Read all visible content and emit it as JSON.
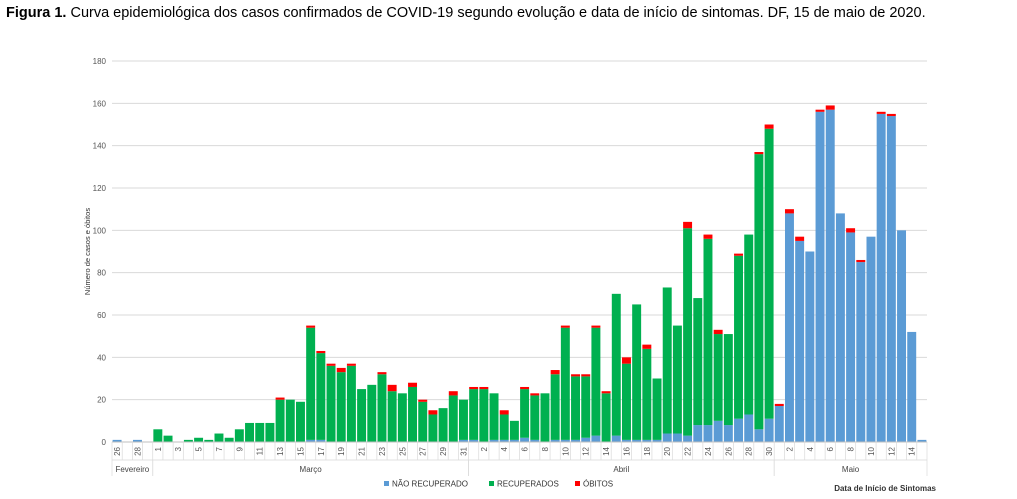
{
  "caption": {
    "label": "Figura 1.",
    "text": " Curva epidemiológica dos casos confirmados de COVID-19 segundo evolução e data de início de sintomas. DF, 15 de maio de 2020."
  },
  "chart_data": {
    "type": "bar",
    "stacked": true,
    "ylabel": "Número de casos e óbitos",
    "xlabel": "Data de Início de Sintomas",
    "ylim": [
      0,
      180
    ],
    "yticks": [
      0,
      20,
      40,
      60,
      80,
      100,
      120,
      140,
      160,
      180
    ],
    "grid": true,
    "legend_position": "bottom",
    "months": [
      {
        "label": "Fevereiro",
        "start": 0,
        "end": 3
      },
      {
        "label": "Março",
        "start": 4,
        "end": 34
      },
      {
        "label": "Abril",
        "start": 35,
        "end": 64
      },
      {
        "label": "Maio",
        "start": 65,
        "end": 79
      }
    ],
    "categories": [
      "26",
      "27",
      "28",
      "29",
      "1",
      "2",
      "3",
      "4",
      "5",
      "6",
      "7",
      "8",
      "9",
      "10",
      "11",
      "12",
      "13",
      "14",
      "15",
      "16",
      "17",
      "18",
      "19",
      "20",
      "21",
      "22",
      "23",
      "24",
      "25",
      "26",
      "27",
      "28",
      "29",
      "30",
      "31",
      "1",
      "2",
      "3",
      "4",
      "5",
      "6",
      "7",
      "8",
      "9",
      "10",
      "11",
      "12",
      "13",
      "14",
      "15",
      "16",
      "17",
      "18",
      "19",
      "20",
      "21",
      "22",
      "23",
      "24",
      "25",
      "26",
      "27",
      "28",
      "29",
      "30",
      "1",
      "2",
      "3",
      "4",
      "5",
      "6",
      "7",
      "8",
      "9",
      "10",
      "11",
      "12",
      "13",
      "14",
      "15"
    ],
    "tick_labels": [
      "26",
      "",
      "28",
      "",
      "1",
      "",
      "3",
      "",
      "5",
      "",
      "7",
      "",
      "9",
      "",
      "11",
      "",
      "13",
      "",
      "15",
      "",
      "17",
      "",
      "19",
      "",
      "21",
      "",
      "23",
      "",
      "25",
      "",
      "27",
      "",
      "29",
      "",
      "31",
      "",
      "2",
      "",
      "4",
      "",
      "6",
      "",
      "8",
      "",
      "10",
      "",
      "12",
      "",
      "14",
      "",
      "16",
      "",
      "18",
      "",
      "20",
      "",
      "22",
      "",
      "24",
      "",
      "26",
      "",
      "28",
      "",
      "30",
      "",
      "2",
      "",
      "4",
      "",
      "6",
      "",
      "8",
      "",
      "10",
      "",
      "12",
      "",
      "14",
      ""
    ],
    "series": [
      {
        "name": "NÃO RECUPERADO",
        "color": "#5b9bd5",
        "values": [
          1,
          0,
          1,
          0,
          0,
          0,
          0,
          0,
          0,
          0,
          0,
          0,
          0,
          0,
          0,
          0,
          0,
          0,
          0,
          1,
          1,
          0,
          0,
          0,
          0,
          0,
          0,
          0,
          0,
          0,
          0,
          0,
          0,
          0,
          1,
          1,
          0,
          1,
          1,
          1,
          2,
          1,
          0,
          1,
          1,
          1,
          2,
          3,
          0,
          3,
          1,
          1,
          1,
          1,
          4,
          4,
          3,
          8,
          8,
          10,
          8,
          11,
          13,
          6,
          11,
          17,
          108,
          95,
          90,
          156,
          157,
          108,
          99,
          85,
          97,
          155,
          154,
          100,
          52,
          1
        ],
        "totals": [
          1,
          0,
          1,
          0,
          0,
          0,
          0,
          0,
          0,
          0,
          0,
          0,
          0,
          0,
          0,
          0,
          0,
          0,
          0,
          1,
          1,
          0,
          0,
          0,
          0,
          0,
          0,
          0,
          0,
          0,
          0,
          0,
          0,
          0,
          1,
          1,
          0,
          1,
          1,
          1,
          2,
          1,
          0,
          1,
          1,
          1,
          2,
          3,
          0,
          3,
          1,
          1,
          1,
          1,
          4,
          4,
          3,
          8,
          8,
          10,
          8,
          11,
          13,
          6,
          11,
          17,
          108,
          95,
          90,
          156,
          157,
          108,
          99,
          85,
          97,
          155,
          154,
          100,
          52,
          1
        ]
      },
      {
        "name": "RECUPERADOS",
        "color": "#00b050",
        "values": [
          0,
          0,
          0,
          0,
          6,
          3,
          0,
          1,
          2,
          1,
          4,
          2,
          6,
          9,
          9,
          9,
          20,
          20,
          19,
          53,
          41,
          36,
          33,
          36,
          25,
          27,
          32,
          24,
          23,
          26,
          19,
          13,
          16,
          22,
          19,
          24,
          25,
          22,
          12,
          9,
          23,
          21,
          23,
          31,
          53,
          30,
          29,
          51,
          23,
          67,
          36,
          64,
          43,
          29,
          69,
          51,
          98,
          60,
          88,
          41,
          43,
          77,
          85,
          130,
          137,
          0,
          0,
          0,
          0,
          0,
          0,
          0,
          0,
          0,
          0,
          0,
          0,
          0,
          0,
          0
        ],
        "totals": [
          0,
          0,
          0,
          0,
          6,
          3,
          0,
          1,
          2,
          1,
          4,
          2,
          6,
          9,
          9,
          9,
          20,
          20,
          19,
          53,
          41,
          36,
          33,
          36,
          25,
          27,
          32,
          24,
          23,
          26,
          19,
          13,
          16,
          22,
          19,
          24,
          25,
          22,
          12,
          9,
          23,
          21,
          23,
          31,
          53,
          30,
          29,
          51,
          23,
          67,
          36,
          64,
          43,
          29,
          69,
          51,
          98,
          60,
          88,
          41,
          43,
          77,
          85,
          130,
          137,
          0,
          0,
          0,
          0,
          0,
          0,
          0,
          0,
          0,
          0,
          0,
          0,
          0,
          0,
          0
        ]
      },
      {
        "name": "ÓBITOS",
        "color": "#ff0000",
        "values": [
          0,
          0,
          0,
          0,
          0,
          0,
          0,
          0,
          0,
          0,
          0,
          0,
          0,
          0,
          0,
          0,
          1,
          0,
          0,
          1,
          1,
          1,
          2,
          1,
          0,
          0,
          1,
          3,
          0,
          2,
          1,
          2,
          0,
          2,
          0,
          1,
          1,
          0,
          2,
          0,
          1,
          1,
          0,
          2,
          1,
          1,
          1,
          1,
          1,
          0,
          3,
          0,
          2,
          0,
          0,
          0,
          3,
          0,
          2,
          2,
          0,
          1,
          0,
          1,
          2,
          1,
          2,
          2,
          0,
          1,
          2,
          0,
          2,
          1,
          0,
          1,
          1,
          0,
          0,
          0
        ],
        "totals": [
          0,
          0,
          0,
          0,
          0,
          0,
          0,
          0,
          0,
          0,
          0,
          0,
          0,
          0,
          0,
          0,
          1,
          0,
          0,
          1,
          1,
          1,
          2,
          1,
          0,
          0,
          1,
          3,
          0,
          2,
          1,
          2,
          0,
          2,
          0,
          1,
          1,
          0,
          2,
          0,
          1,
          1,
          0,
          2,
          1,
          1,
          1,
          1,
          1,
          0,
          3,
          0,
          2,
          0,
          0,
          0,
          3,
          0,
          2,
          2,
          0,
          1,
          0,
          1,
          2,
          1,
          2,
          2,
          0,
          1,
          2,
          0,
          2,
          1,
          0,
          1,
          1,
          0,
          0,
          0
        ]
      }
    ]
  }
}
